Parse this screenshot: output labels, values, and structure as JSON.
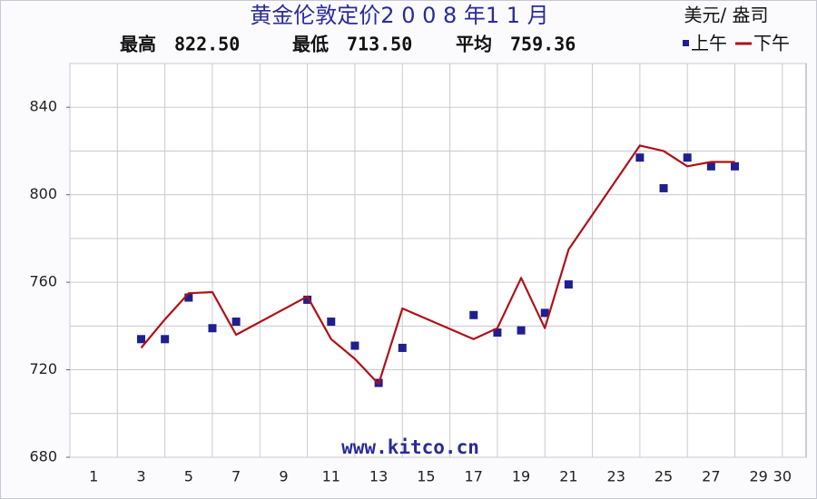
{
  "chart_data": {
    "type": "line",
    "title": "黄金伦敦定价2 0 0 8 年1 1 月",
    "unit_label": "美元/ 盎司",
    "stats": [
      {
        "name": "最高",
        "value": "822.50"
      },
      {
        "name": "最低",
        "value": "713.50"
      },
      {
        "name": "平均",
        "value": "759.36"
      }
    ],
    "watermark": "www.kitco.cn",
    "xlim": [
      0,
      31
    ],
    "xticks": [
      1,
      3,
      5,
      7,
      9,
      11,
      13,
      15,
      17,
      19,
      21,
      23,
      25,
      27,
      29,
      30
    ],
    "xgridlines": [
      0,
      2,
      4,
      6,
      8,
      10,
      12,
      14,
      16,
      18,
      20,
      22,
      24,
      26,
      28,
      30
    ],
    "ylim": [
      680,
      860
    ],
    "yticks": [
      680,
      720,
      760,
      800,
      840
    ],
    "ygridlines": [
      680,
      700,
      720,
      740,
      760,
      780,
      800,
      820,
      840,
      860
    ],
    "grid": true,
    "legend": "top-right",
    "series": [
      {
        "name": "上午",
        "color": "#1f1f8f",
        "style": "points",
        "x": [
          3,
          4,
          5,
          6,
          7,
          10,
          11,
          12,
          13,
          14,
          17,
          18,
          19,
          20,
          21,
          24,
          25,
          26,
          27,
          28
        ],
        "values": [
          734,
          734,
          753,
          739,
          742,
          752,
          742,
          731,
          714,
          730,
          745,
          737,
          738,
          746,
          759,
          817,
          803,
          817,
          813,
          813
        ]
      },
      {
        "name": "下午",
        "color": "#b01018",
        "style": "line",
        "x": [
          3,
          4,
          5,
          6,
          7,
          10,
          11,
          12,
          13,
          14,
          17,
          18,
          19,
          20,
          21,
          24,
          25,
          26,
          27,
          28
        ],
        "values": [
          730,
          743,
          755,
          755.5,
          736,
          753.5,
          734,
          725,
          713.5,
          748,
          734,
          739,
          762,
          739,
          775,
          822.5,
          820,
          813,
          815,
          815
        ]
      }
    ]
  }
}
